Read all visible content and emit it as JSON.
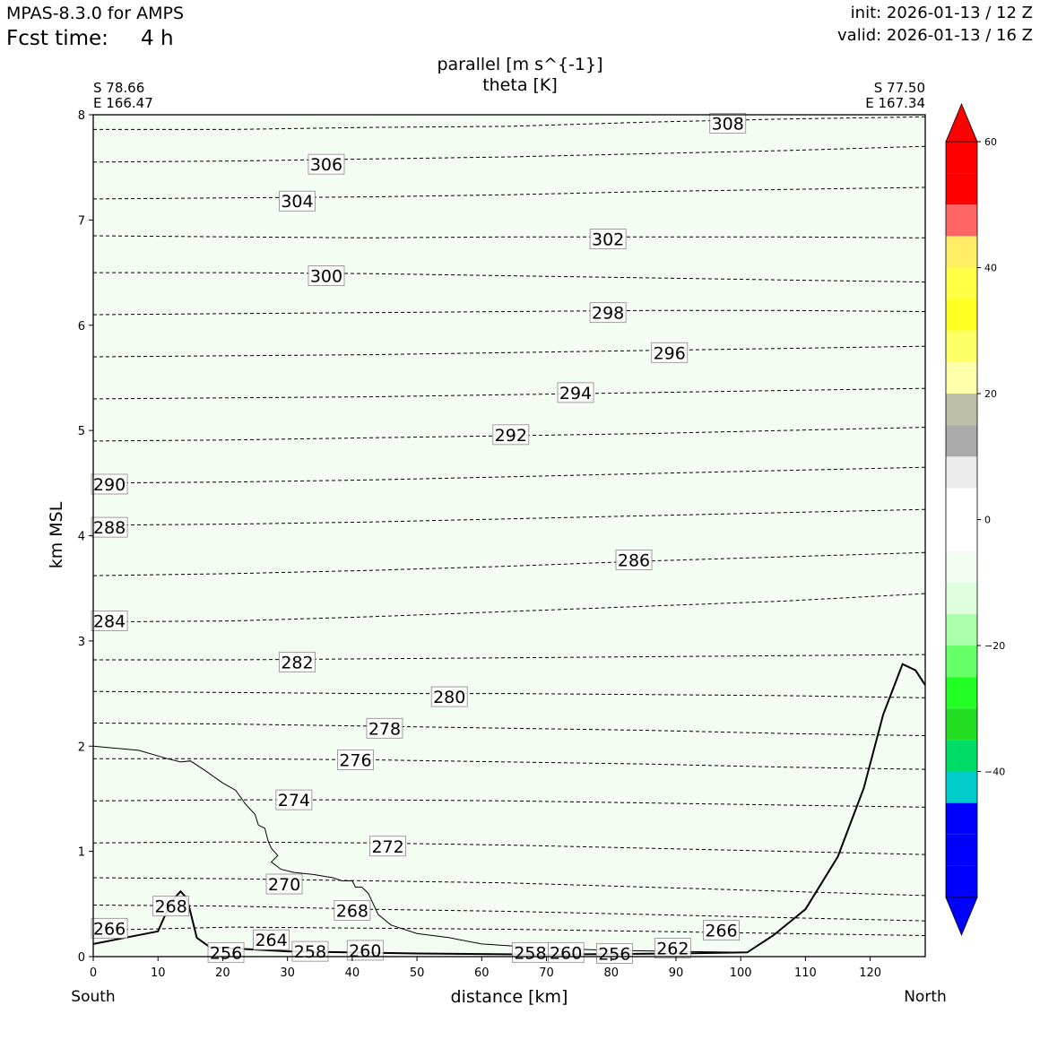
{
  "header": {
    "model": "MPAS-8.3.0 for AMPS",
    "fcst_label": "Fcst time:",
    "fcst_value": "4 h",
    "init": "init: 2026-01-13 / 12 Z",
    "valid": "valid: 2026-01-13 / 16 Z"
  },
  "chart_data": {
    "type": "cross-section",
    "title": "parallel [m s^{-1}]",
    "subtitle": "theta [K]",
    "xlabel": "distance [km]",
    "ylabel": "km MSL",
    "xlim": [
      0,
      128.5
    ],
    "ylim": [
      0,
      8
    ],
    "x_ticks": [
      0,
      10,
      20,
      30,
      40,
      50,
      60,
      70,
      80,
      90,
      100,
      110,
      120
    ],
    "y_ticks": [
      0,
      1,
      2,
      3,
      4,
      5,
      6,
      7,
      8
    ],
    "endpoints": {
      "left": {
        "lat": "S 78.66",
        "lon": "E 166.47",
        "direction": "South"
      },
      "right": {
        "lat": "S 77.50",
        "lon": "E 167.34",
        "direction": "North"
      }
    },
    "fill_color": "#f3fdf1",
    "theta_contours": [
      {
        "value": 308,
        "y": [
          7.86,
          7.86,
          7.88,
          7.89,
          7.93,
          7.96,
          7.98
        ]
      },
      {
        "value": 306,
        "y": [
          7.55,
          7.56,
          7.58,
          7.6,
          7.63,
          7.66,
          7.7
        ]
      },
      {
        "value": 304,
        "y": [
          7.2,
          7.21,
          7.22,
          7.24,
          7.27,
          7.29,
          7.31
        ]
      },
      {
        "value": 302,
        "y": [
          6.85,
          6.84,
          6.83,
          6.84,
          6.84,
          6.84,
          6.83
        ]
      },
      {
        "value": 300,
        "y": [
          6.5,
          6.5,
          6.49,
          6.47,
          6.45,
          6.43,
          6.41
        ]
      },
      {
        "value": 298,
        "y": [
          6.1,
          6.11,
          6.12,
          6.13,
          6.14,
          6.14,
          6.13
        ]
      },
      {
        "value": 296,
        "y": [
          5.7,
          5.71,
          5.72,
          5.74,
          5.76,
          5.78,
          5.8
        ]
      },
      {
        "value": 294,
        "y": [
          5.3,
          5.31,
          5.32,
          5.34,
          5.36,
          5.38,
          5.4
        ]
      },
      {
        "value": 292,
        "y": [
          4.9,
          4.91,
          4.93,
          4.95,
          4.97,
          5.0,
          5.03
        ]
      },
      {
        "value": 290,
        "y": [
          4.5,
          4.51,
          4.53,
          4.56,
          4.59,
          4.62,
          4.65
        ]
      },
      {
        "value": 288,
        "y": [
          4.1,
          4.11,
          4.13,
          4.16,
          4.19,
          4.22,
          4.25
        ]
      },
      {
        "value": 286,
        "y": [
          3.62,
          3.64,
          3.67,
          3.71,
          3.76,
          3.8,
          3.84
        ]
      },
      {
        "value": 284,
        "y": [
          3.18,
          3.19,
          3.23,
          3.28,
          3.33,
          3.38,
          3.45
        ]
      },
      {
        "value": 282,
        "y": [
          2.82,
          2.82,
          2.83,
          2.84,
          2.85,
          2.86,
          2.87
        ]
      },
      {
        "value": 280,
        "y": [
          2.52,
          2.51,
          2.5,
          2.5,
          2.49,
          2.48,
          2.46
        ]
      },
      {
        "value": 278,
        "y": [
          2.22,
          2.21,
          2.19,
          2.17,
          2.15,
          2.12,
          2.1
        ]
      },
      {
        "value": 276,
        "y": [
          1.88,
          1.88,
          1.87,
          1.85,
          1.83,
          1.8,
          1.78
        ]
      },
      {
        "value": 274,
        "y": [
          1.48,
          1.49,
          1.49,
          1.48,
          1.46,
          1.44,
          1.42
        ]
      },
      {
        "value": 272,
        "y": [
          1.08,
          1.09,
          1.08,
          1.06,
          1.03,
          1.0,
          0.97
        ]
      },
      {
        "value": 270,
        "y": [
          0.75,
          0.74,
          0.72,
          0.7,
          0.66,
          0.62,
          0.58
        ]
      },
      {
        "value": 268,
        "y": [
          0.49,
          0.48,
          0.45,
          0.43,
          0.4,
          0.37,
          0.34
        ]
      },
      {
        "value": 266,
        "y": [
          0.25,
          0.28,
          0.27,
          0.26,
          0.24,
          0.22,
          0.2
        ]
      }
    ],
    "theta_labels": [
      {
        "value": 308,
        "x": 98.0,
        "y": 7.92
      },
      {
        "value": 306,
        "x": 36.0,
        "y": 7.53
      },
      {
        "value": 304,
        "x": 31.5,
        "y": 7.18
      },
      {
        "value": 302,
        "x": 79.5,
        "y": 6.82
      },
      {
        "value": 300,
        "x": 36.0,
        "y": 6.47
      },
      {
        "value": 298,
        "x": 79.5,
        "y": 6.12
      },
      {
        "value": 296,
        "x": 89.0,
        "y": 5.74
      },
      {
        "value": 294,
        "x": 74.5,
        "y": 5.36
      },
      {
        "value": 292,
        "x": 64.5,
        "y": 4.96
      },
      {
        "value": 290,
        "x": 2.5,
        "y": 4.49
      },
      {
        "value": 288,
        "x": 2.5,
        "y": 4.08
      },
      {
        "value": 286,
        "x": 83.5,
        "y": 3.77
      },
      {
        "value": 284,
        "x": 2.5,
        "y": 3.19
      },
      {
        "value": 282,
        "x": 31.5,
        "y": 2.8
      },
      {
        "value": 280,
        "x": 55.0,
        "y": 2.47
      },
      {
        "value": 278,
        "x": 45.0,
        "y": 2.17
      },
      {
        "value": 276,
        "x": 40.5,
        "y": 1.87
      },
      {
        "value": 274,
        "x": 31.0,
        "y": 1.49
      },
      {
        "value": 272,
        "x": 45.5,
        "y": 1.05
      },
      {
        "value": 270,
        "x": 29.5,
        "y": 0.69
      },
      {
        "value": 268,
        "x": 12.0,
        "y": 0.48
      },
      {
        "value": 268,
        "x": 40.0,
        "y": 0.44
      },
      {
        "value": 266,
        "x": 2.5,
        "y": 0.27
      },
      {
        "value": 266,
        "x": 97.0,
        "y": 0.25
      },
      {
        "value": 264,
        "x": 27.5,
        "y": 0.16
      },
      {
        "value": 262,
        "x": 89.5,
        "y": 0.08
      },
      {
        "value": 260,
        "x": 42.0,
        "y": 0.06
      },
      {
        "value": 260,
        "x": 73.0,
        "y": 0.04
      },
      {
        "value": 258,
        "x": 33.5,
        "y": 0.05
      },
      {
        "value": 258,
        "x": 67.5,
        "y": 0.04
      },
      {
        "value": 256,
        "x": 20.5,
        "y": 0.04
      },
      {
        "value": 256,
        "x": 80.5,
        "y": 0.03
      }
    ],
    "terrain": [
      [
        0,
        0.12
      ],
      [
        10,
        0.24
      ],
      [
        12,
        0.52
      ],
      [
        13.5,
        0.62
      ],
      [
        14.5,
        0.55
      ],
      [
        16,
        0.18
      ],
      [
        18,
        0.09
      ],
      [
        30,
        0.05
      ],
      [
        50,
        0.03
      ],
      [
        70,
        0.02
      ],
      [
        90,
        0.03
      ],
      [
        101,
        0.04
      ],
      [
        105,
        0.2
      ],
      [
        110,
        0.45
      ],
      [
        115,
        0.95
      ],
      [
        119,
        1.6
      ],
      [
        122,
        2.3
      ],
      [
        125,
        2.78
      ],
      [
        127,
        2.72
      ],
      [
        128.5,
        2.58
      ]
    ],
    "zero_contour": [
      [
        0,
        2.0
      ],
      [
        7,
        1.96
      ],
      [
        11.5,
        1.88
      ],
      [
        13.5,
        1.85
      ],
      [
        15,
        1.86
      ],
      [
        17,
        1.78
      ],
      [
        20,
        1.65
      ],
      [
        22,
        1.58
      ],
      [
        23.5,
        1.45
      ],
      [
        25,
        1.35
      ],
      [
        25.5,
        1.25
      ],
      [
        26.5,
        1.22
      ],
      [
        27,
        1.1
      ],
      [
        27.5,
        1.03
      ],
      [
        28.5,
        0.96
      ],
      [
        27.5,
        0.9
      ],
      [
        29,
        0.83
      ],
      [
        31,
        0.8
      ],
      [
        34,
        0.78
      ],
      [
        37,
        0.75
      ],
      [
        38.5,
        0.72
      ],
      [
        40,
        0.72
      ],
      [
        40.5,
        0.66
      ],
      [
        41.5,
        0.66
      ],
      [
        42.5,
        0.6
      ],
      [
        44,
        0.4
      ],
      [
        46,
        0.3
      ],
      [
        50,
        0.22
      ],
      [
        55,
        0.18
      ],
      [
        60,
        0.12
      ],
      [
        70,
        0.08
      ],
      [
        80,
        0.06
      ],
      [
        90,
        0.05
      ],
      [
        101,
        0.04
      ]
    ],
    "colorbar": {
      "levels": [
        -60,
        -55,
        -50,
        -45,
        -40,
        -35,
        -30,
        -25,
        -20,
        -15,
        -10,
        -5,
        0,
        5,
        10,
        15,
        20,
        25,
        30,
        35,
        40,
        45,
        50,
        55,
        60
      ],
      "colors": [
        "#0000ff",
        "#0000ff",
        "#0000ff",
        "#00cccc",
        "#00dd66",
        "#22dd22",
        "#22ff22",
        "#66ff66",
        "#aaffaa",
        "#ddffdd",
        "#f3fdf1",
        "#ffffff",
        "#ffffff",
        "#ebebeb",
        "#aaaaaa",
        "#bfbfa8",
        "#ffffaa",
        "#ffff66",
        "#ffff22",
        "#ffff44",
        "#ffee66",
        "#ff6666",
        "#ff0000",
        "#ff0000"
      ],
      "under_color": "#0000ff",
      "over_color": "#ff0000",
      "tick_values": [
        -40,
        -20,
        0,
        20,
        40,
        60
      ],
      "tick_labels": [
        "−40",
        "−20",
        "0",
        "20",
        "40",
        "60"
      ]
    }
  }
}
